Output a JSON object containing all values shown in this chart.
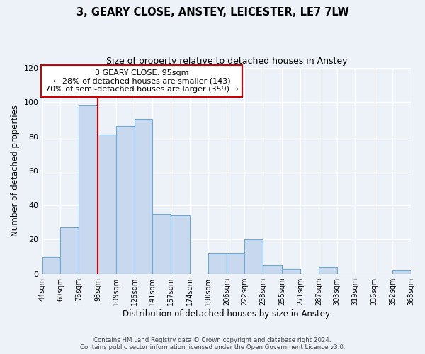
{
  "title": "3, GEARY CLOSE, ANSTEY, LEICESTER, LE7 7LW",
  "subtitle": "Size of property relative to detached houses in Anstey",
  "xlabel": "Distribution of detached houses by size in Anstey",
  "ylabel": "Number of detached properties",
  "bar_edges": [
    44,
    60,
    76,
    93,
    109,
    125,
    141,
    157,
    174,
    190,
    206,
    222,
    238,
    255,
    271,
    287,
    303,
    319,
    336,
    352,
    368
  ],
  "bar_heights": [
    10,
    27,
    98,
    81,
    86,
    90,
    35,
    34,
    0,
    12,
    12,
    20,
    5,
    3,
    0,
    4,
    0,
    0,
    0,
    2
  ],
  "tick_labels": [
    "44sqm",
    "60sqm",
    "76sqm",
    "93sqm",
    "109sqm",
    "125sqm",
    "141sqm",
    "157sqm",
    "174sqm",
    "190sqm",
    "206sqm",
    "222sqm",
    "238sqm",
    "255sqm",
    "271sqm",
    "287sqm",
    "303sqm",
    "319sqm",
    "336sqm",
    "352sqm",
    "368sqm"
  ],
  "bar_color": "#c8d9ef",
  "bar_edge_color": "#6aaad4",
  "vline_x": 93,
  "vline_color": "#cc0000",
  "annotation_title": "3 GEARY CLOSE: 95sqm",
  "annotation_line1": "← 28% of detached houses are smaller (143)",
  "annotation_line2": "70% of semi-detached houses are larger (359) →",
  "annotation_box_facecolor": "#ffffff",
  "annotation_box_edgecolor": "#cc0000",
  "ylim": [
    0,
    120
  ],
  "yticks": [
    0,
    20,
    40,
    60,
    80,
    100,
    120
  ],
  "footer1": "Contains HM Land Registry data © Crown copyright and database right 2024.",
  "footer2": "Contains public sector information licensed under the Open Government Licence v3.0.",
  "bg_color": "#edf2f9",
  "grid_color": "#ffffff",
  "text_color": "#000000"
}
